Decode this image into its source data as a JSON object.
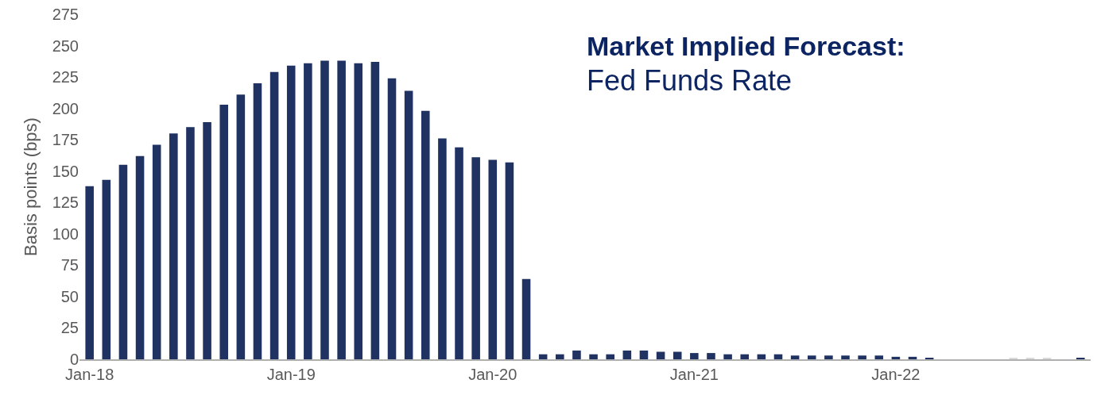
{
  "chart_data": {
    "type": "bar",
    "title": "Market Implied Forecast:",
    "subtitle": "Fed Funds Rate",
    "ylabel": "Basis points (bps)",
    "categories": [
      "Jan-18",
      null,
      null,
      null,
      null,
      null,
      null,
      null,
      null,
      null,
      null,
      null,
      "Jan-19",
      null,
      null,
      null,
      null,
      null,
      null,
      null,
      null,
      null,
      null,
      null,
      "Jan-20",
      null,
      null,
      null,
      null,
      null,
      null,
      null,
      null,
      null,
      null,
      null,
      "Jan-21",
      null,
      null,
      null,
      null,
      null,
      null,
      null,
      null,
      null,
      null,
      null,
      "Jan-22",
      null,
      null,
      null,
      null,
      null,
      null,
      null,
      null,
      null,
      null,
      null
    ],
    "values": [
      138,
      143,
      155,
      162,
      171,
      180,
      185,
      189,
      203,
      211,
      220,
      229,
      234,
      236,
      238,
      238,
      236,
      237,
      224,
      214,
      198,
      176,
      169,
      161,
      159,
      157,
      64,
      4,
      4,
      7,
      4,
      4,
      7,
      7,
      6,
      6,
      5,
      5,
      4,
      4,
      4,
      4,
      3,
      3,
      3,
      3,
      3,
      3,
      2,
      2,
      1,
      0,
      0,
      0,
      0,
      1,
      1,
      1,
      0,
      1
    ],
    "colors": [
      "#1f3262",
      "#1f3262",
      "#1f3262",
      "#1f3262",
      "#1f3262",
      "#1f3262",
      "#1f3262",
      "#1f3262",
      "#1f3262",
      "#1f3262",
      "#1f3262",
      "#1f3262",
      "#1f3262",
      "#1f3262",
      "#1f3262",
      "#1f3262",
      "#1f3262",
      "#1f3262",
      "#1f3262",
      "#1f3262",
      "#1f3262",
      "#1f3262",
      "#1f3262",
      "#1f3262",
      "#1f3262",
      "#1f3262",
      "#1f3262",
      "#1f3262",
      "#1f3262",
      "#1f3262",
      "#1f3262",
      "#1f3262",
      "#1f3262",
      "#1f3262",
      "#1f3262",
      "#1f3262",
      "#1f3262",
      "#1f3262",
      "#1f3262",
      "#1f3262",
      "#1f3262",
      "#1f3262",
      "#1f3262",
      "#1f3262",
      "#1f3262",
      "#1f3262",
      "#1f3262",
      "#1f3262",
      "#1f3262",
      "#1f3262",
      "#1f3262",
      "#1f3262",
      "#1f3262",
      "#1f3262",
      "#1f3262",
      "#d9d9d9",
      "#d9d9d9",
      "#d9d9d9",
      "#1f3262",
      "#1f3262"
    ],
    "ylim": [
      0,
      275
    ],
    "yticks": [
      0,
      25,
      50,
      75,
      100,
      125,
      150,
      175,
      200,
      225,
      250,
      275
    ]
  }
}
